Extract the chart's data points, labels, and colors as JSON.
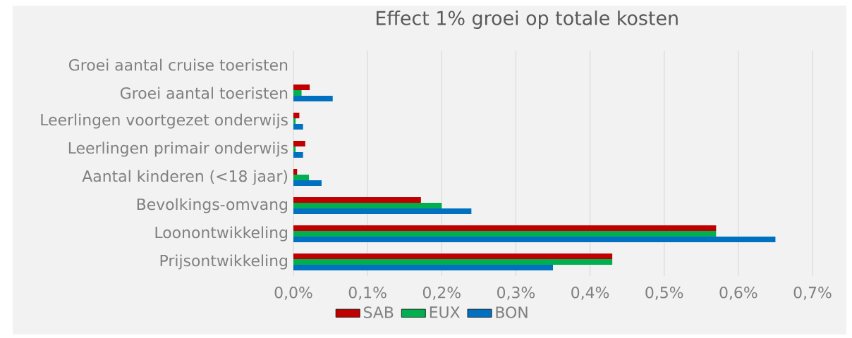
{
  "chart_data": {
    "type": "bar",
    "orientation": "horizontal",
    "title": "Effect 1% groei op totale kosten",
    "categories": [
      "Groei aantal cruise toeristen",
      "Groei aantal toeristen",
      "Leerlingen voortgezet onderwijs",
      "Leerlingen primair onderwijs",
      "Aantal kinderen (<18 jaar)",
      "Bevolkings-omvang",
      "Loonontwikkeling",
      "Prijsontwikkeling"
    ],
    "series": [
      {
        "name": "SAB",
        "color": "#c00000",
        "values": [
          0,
          0.022,
          0.008,
          0.016,
          0.005,
          0.172,
          0.57,
          0.43
        ]
      },
      {
        "name": "EUX",
        "color": "#00b050",
        "values": [
          0,
          0.011,
          0.003,
          0.003,
          0.021,
          0.2,
          0.57,
          0.43
        ]
      },
      {
        "name": "BON",
        "color": "#0070c0",
        "values": [
          0,
          0.053,
          0.013,
          0.013,
          0.038,
          0.24,
          0.65,
          0.35
        ]
      }
    ],
    "xlim": [
      0,
      0.7
    ],
    "xticks": [
      {
        "value": 0,
        "label": "0,0%"
      },
      {
        "value": 0.1,
        "label": "0,1%"
      },
      {
        "value": 0.2,
        "label": "0,2%"
      },
      {
        "value": 0.3,
        "label": "0,3%"
      },
      {
        "value": 0.4,
        "label": "0,4%"
      },
      {
        "value": 0.5,
        "label": "0,5%"
      },
      {
        "value": 0.6,
        "label": "0,6%"
      },
      {
        "value": 0.7,
        "label": "0,7%"
      }
    ],
    "grid": "x",
    "legend": "bottom"
  }
}
